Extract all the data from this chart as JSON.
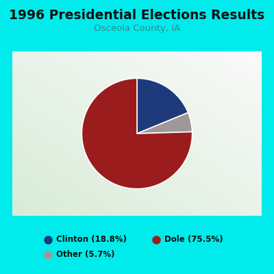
{
  "title": "1996 Presidential Elections Results",
  "subtitle": "Osceola County, IA",
  "slices": [
    18.8,
    5.7,
    75.5
  ],
  "labels": [
    "Clinton",
    "Other",
    "Dole"
  ],
  "colors": [
    "#1f3a7a",
    "#a09898",
    "#9b1c1c"
  ],
  "legend_labels": [
    "Clinton (18.8%)",
    "Dole (75.5%)",
    "Other (5.7%)"
  ],
  "legend_colors": [
    "#1f3a7a",
    "#9b1c1c",
    "#a09898"
  ],
  "background_outer": "#00ecec",
  "background_inner_tl": "#f0f8f0",
  "background_inner_br": "#d8ecd8",
  "title_fontsize": 13.5,
  "subtitle_fontsize": 9.5,
  "startangle": 90,
  "title_color": "#111111",
  "subtitle_color": "#2a8a8a",
  "watermark_color": "#b0ccd0"
}
